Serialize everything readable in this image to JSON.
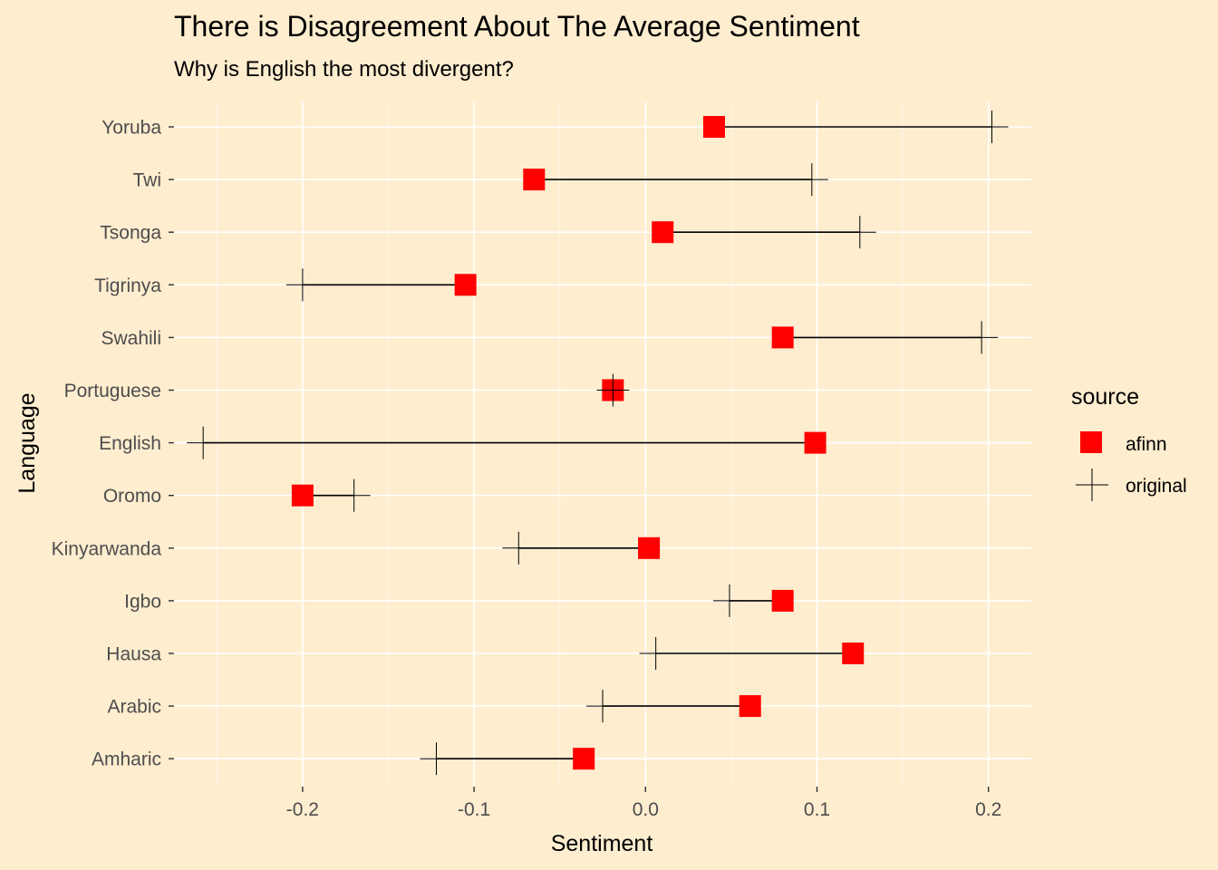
{
  "chart_data": {
    "type": "dumbbell",
    "title": "There is Disagreement About The Average Sentiment",
    "subtitle": "Why is English the most divergent?",
    "xlabel": "Sentiment",
    "ylabel": "Language",
    "xlim": [
      -0.275,
      0.225
    ],
    "x_ticks": [
      -0.2,
      -0.1,
      0.0,
      0.1,
      0.2
    ],
    "x_tick_labels": [
      "-0.2",
      "-0.1",
      "0.0",
      "0.1",
      "0.2"
    ],
    "grid": true,
    "legend": {
      "title": "source",
      "position": "right",
      "entries": [
        {
          "name": "afinn",
          "shape": "square",
          "color": "#FF0000"
        },
        {
          "name": "original",
          "shape": "cross",
          "color": "#000000"
        }
      ]
    },
    "categories": [
      "Yoruba",
      "Twi",
      "Tsonga",
      "Tigrinya",
      "Swahili",
      "Portuguese",
      "English",
      "Oromo",
      "Kinyarwanda",
      "Igbo",
      "Hausa",
      "Arabic",
      "Amharic"
    ],
    "series": [
      {
        "name": "afinn",
        "values": [
          0.04,
          -0.065,
          0.01,
          -0.105,
          0.08,
          -0.019,
          0.099,
          -0.2,
          0.002,
          0.08,
          0.121,
          0.061,
          -0.036
        ]
      },
      {
        "name": "original",
        "values": [
          0.202,
          0.097,
          0.125,
          -0.2,
          0.196,
          -0.019,
          -0.258,
          -0.17,
          -0.074,
          0.049,
          0.006,
          -0.025,
          -0.122
        ]
      }
    ]
  }
}
